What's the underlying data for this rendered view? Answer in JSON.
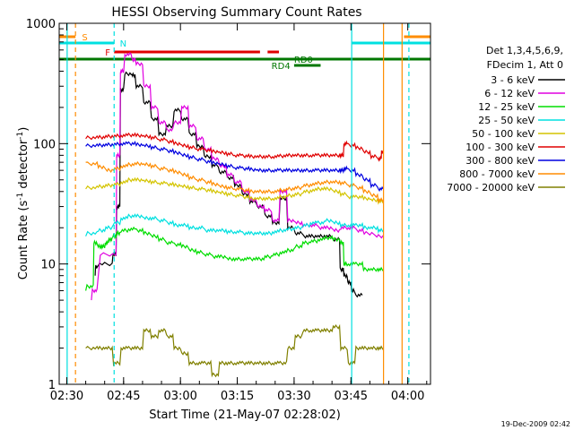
{
  "chart_data": {
    "type": "line",
    "title": "HESSI Observing Summary Count Rates",
    "xlabel": "Start Time (21-May-07 02:28:02)",
    "ylabel_main": "Count Rate (s",
    "ylabel_sup1": "-1",
    "ylabel_mid": " detector",
    "ylabel_sup2": "-1",
    "ylabel_end": ")",
    "x_unit": "minutes since 02:28:02",
    "xlim": [
      0,
      98
    ],
    "ylim": [
      1,
      1000
    ],
    "yscale": "log",
    "x_ticks": [
      {
        "label": "02:30",
        "value": 2
      },
      {
        "label": "02:45",
        "value": 17
      },
      {
        "label": "03:00",
        "value": 32
      },
      {
        "label": "03:15",
        "value": 47
      },
      {
        "label": "03:30",
        "value": 62
      },
      {
        "label": "03:45",
        "value": 77
      },
      {
        "label": "04:00",
        "value": 92
      }
    ],
    "y_ticks": [
      {
        "label": "1",
        "value": 1
      },
      {
        "label": "10",
        "value": 10
      },
      {
        "label": "100",
        "value": 100
      },
      {
        "label": "1000",
        "value": 1000
      }
    ],
    "footer_timestamp": "19-Dec-2009 02:42",
    "legend": {
      "position": "right",
      "header1": "Det 1,3,4,5,6,9,",
      "header2": "FDecim 1, Att 0"
    },
    "series": [
      {
        "name": "3 - 6 keV",
        "color": "#000000",
        "x": [
          3,
          9.5,
          10,
          14,
          15,
          16,
          17,
          19,
          20,
          22,
          24,
          26,
          28,
          30,
          32,
          34,
          36,
          38,
          40,
          42,
          44,
          46,
          48,
          50,
          52,
          54,
          56,
          58,
          60,
          62,
          64,
          66,
          68,
          70,
          72,
          74,
          75,
          76,
          77,
          78,
          80,
          80.5
        ],
        "y": [
          null,
          8,
          9.5,
          10,
          12,
          30,
          280,
          380,
          370,
          300,
          220,
          160,
          120,
          140,
          190,
          160,
          120,
          95,
          78,
          66,
          58,
          52,
          45,
          38,
          33,
          30,
          25,
          22,
          35,
          20,
          18,
          17,
          17,
          17,
          17,
          16,
          9,
          8,
          7,
          6,
          5.5,
          null
        ]
      },
      {
        "name": "6 - 12 keV",
        "color": "#e000e0",
        "x": [
          8.5,
          10,
          15,
          16,
          17,
          19,
          20,
          22,
          24,
          26,
          28,
          30,
          32,
          34,
          36,
          38,
          40,
          42,
          44,
          46,
          48,
          50,
          52,
          54,
          56,
          58,
          60,
          62,
          64,
          66,
          68,
          70,
          72,
          74,
          76,
          78,
          80,
          83,
          85.5
        ],
        "y": [
          5,
          6,
          12,
          80,
          400,
          550,
          500,
          460,
          300,
          200,
          150,
          130,
          150,
          200,
          140,
          110,
          90,
          75,
          65,
          55,
          48,
          40,
          34,
          30,
          28,
          23,
          40,
          23,
          22,
          21,
          21,
          20,
          20,
          19,
          20,
          20,
          19,
          18,
          17
        ]
      },
      {
        "name": "12 - 25 keV",
        "color": "#00dd00",
        "x": [
          7,
          9,
          10,
          11,
          12,
          13,
          14,
          15,
          16,
          18,
          20,
          22,
          24,
          26,
          28,
          30,
          32,
          34,
          36,
          38,
          40,
          42,
          44,
          46,
          48,
          50,
          52,
          54,
          56,
          58,
          60,
          62,
          64,
          66,
          68,
          70,
          72,
          74,
          75,
          76,
          78,
          80,
          82,
          84,
          85.5
        ],
        "y": [
          6,
          6.5,
          15,
          14,
          14,
          15,
          16,
          17,
          18,
          19,
          19.5,
          19,
          18,
          17,
          16,
          15,
          14.5,
          14,
          13,
          12.5,
          12,
          11.5,
          11.5,
          11,
          11,
          11,
          11,
          11,
          11.5,
          12,
          12.5,
          13,
          14,
          15,
          15.5,
          16,
          16.5,
          16,
          15,
          10,
          10,
          10,
          9,
          9,
          9
        ]
      },
      {
        "name": "25 - 50 keV",
        "color": "#00e0e0",
        "x": [
          7,
          10,
          12,
          14,
          16,
          18,
          20,
          22,
          24,
          26,
          28,
          30,
          32,
          34,
          36,
          38,
          40,
          42,
          44,
          46,
          48,
          50,
          52,
          54,
          56,
          58,
          60,
          62,
          64,
          66,
          68,
          70,
          72,
          74,
          76,
          78,
          80,
          82,
          84,
          85.5
        ],
        "y": [
          17,
          18,
          19,
          20,
          22,
          24,
          25,
          25,
          24,
          24,
          23,
          22,
          21,
          21,
          20,
          20,
          19,
          19,
          19,
          18.5,
          18.5,
          18,
          18,
          18,
          18,
          18.5,
          19,
          19.5,
          20,
          21,
          22,
          22,
          23,
          22,
          21,
          21,
          21,
          20,
          20,
          19
        ]
      },
      {
        "name": "50 - 100 keV",
        "color": "#d4c400",
        "x": [
          7,
          10,
          12,
          14,
          16,
          18,
          20,
          22,
          24,
          26,
          28,
          30,
          32,
          34,
          36,
          38,
          40,
          42,
          44,
          46,
          48,
          50,
          52,
          54,
          56,
          58,
          60,
          62,
          64,
          66,
          68,
          70,
          72,
          74,
          76,
          78,
          80,
          82,
          84,
          85.5
        ],
        "y": [
          42,
          43,
          44,
          45,
          46,
          48,
          50,
          50,
          49,
          48,
          47,
          46,
          45,
          44,
          43,
          42,
          41,
          40,
          39,
          38,
          37,
          36,
          35,
          35,
          35,
          35,
          36,
          37,
          38,
          40,
          41,
          42,
          42,
          40,
          38,
          36,
          36,
          35,
          34,
          33
        ]
      },
      {
        "name": "100 - 300 keV",
        "color": "#e00000",
        "x": [
          7,
          10,
          12,
          14,
          16,
          18,
          20,
          22,
          24,
          26,
          28,
          30,
          32,
          34,
          36,
          38,
          40,
          42,
          44,
          46,
          48,
          50,
          52,
          54,
          56,
          58,
          60,
          62,
          64,
          66,
          68,
          70,
          72,
          74,
          75,
          76,
          78,
          80,
          82,
          84,
          85,
          85.5
        ],
        "y": [
          110,
          112,
          113,
          115,
          116,
          117,
          118,
          117,
          115,
          112,
          108,
          104,
          100,
          96,
          93,
          90,
          88,
          86,
          84,
          82,
          80,
          79,
          78,
          78,
          78,
          78,
          79,
          80,
          80,
          80,
          80,
          80,
          80,
          80,
          80,
          100,
          97,
          92,
          85,
          78,
          75,
          85
        ]
      },
      {
        "name": "300 - 800 keV",
        "color": "#0000e0",
        "x": [
          7,
          10,
          12,
          14,
          16,
          18,
          20,
          22,
          24,
          26,
          28,
          30,
          32,
          34,
          36,
          38,
          40,
          42,
          44,
          46,
          48,
          50,
          52,
          54,
          56,
          58,
          60,
          62,
          64,
          66,
          68,
          70,
          72,
          74,
          75,
          76,
          78,
          80,
          82,
          84,
          85.5
        ],
        "y": [
          95,
          96,
          97,
          98,
          99,
          100,
          100,
          98,
          96,
          93,
          90,
          87,
          84,
          80,
          77,
          74,
          71,
          69,
          67,
          65,
          63,
          62,
          61,
          60,
          60,
          60,
          60,
          60,
          60,
          60,
          60,
          60,
          60,
          60,
          60,
          62,
          60,
          55,
          50,
          45,
          42
        ]
      },
      {
        "name": "800 - 7000 keV",
        "color": "#ff8c00",
        "x": [
          7,
          10,
          12,
          14,
          16,
          18,
          20,
          22,
          24,
          26,
          28,
          30,
          32,
          34,
          36,
          38,
          40,
          42,
          44,
          46,
          48,
          50,
          52,
          54,
          56,
          58,
          60,
          62,
          64,
          66,
          68,
          70,
          72,
          74,
          76,
          78,
          80,
          82,
          84,
          85.5
        ],
        "y": [
          70,
          68,
          64,
          60,
          62,
          65,
          67,
          68,
          67,
          65,
          62,
          60,
          58,
          55,
          52,
          50,
          48,
          46,
          44,
          43,
          42,
          41,
          40,
          40,
          40,
          40,
          41,
          42,
          43,
          45,
          46,
          47,
          48,
          48,
          47,
          45,
          43,
          40,
          37,
          34
        ]
      },
      {
        "name": "7000 - 20000 keV",
        "color": "#808000",
        "x": [
          7,
          10,
          12,
          14,
          16,
          18,
          20,
          22,
          24,
          26,
          28,
          30,
          32,
          34,
          36,
          38,
          40,
          42,
          44,
          46,
          48,
          50,
          52,
          54,
          56,
          58,
          60,
          62,
          64,
          66,
          68,
          70,
          72,
          74,
          76,
          78,
          80,
          82,
          84,
          85.5
        ],
        "y": [
          2,
          2,
          2,
          2,
          1.5,
          2,
          2,
          2,
          2.8,
          2.5,
          2.8,
          2.5,
          2,
          1.8,
          1.5,
          1.5,
          1.5,
          1.2,
          1.5,
          1.5,
          1.5,
          1.5,
          1.5,
          1.5,
          1.5,
          1.5,
          1.5,
          2,
          2.5,
          2.8,
          2.8,
          2.8,
          2.8,
          3,
          2,
          1.5,
          2,
          2,
          2,
          2
        ]
      }
    ],
    "annotations": [
      {
        "label": "S",
        "color": "#ff8c00"
      },
      {
        "label": "N",
        "color": "#00e0e0"
      },
      {
        "label": "F",
        "color": "#e00000"
      },
      {
        "label": "RD0",
        "color": "#007700"
      },
      {
        "label": "RD4",
        "color": "#007700"
      }
    ]
  }
}
